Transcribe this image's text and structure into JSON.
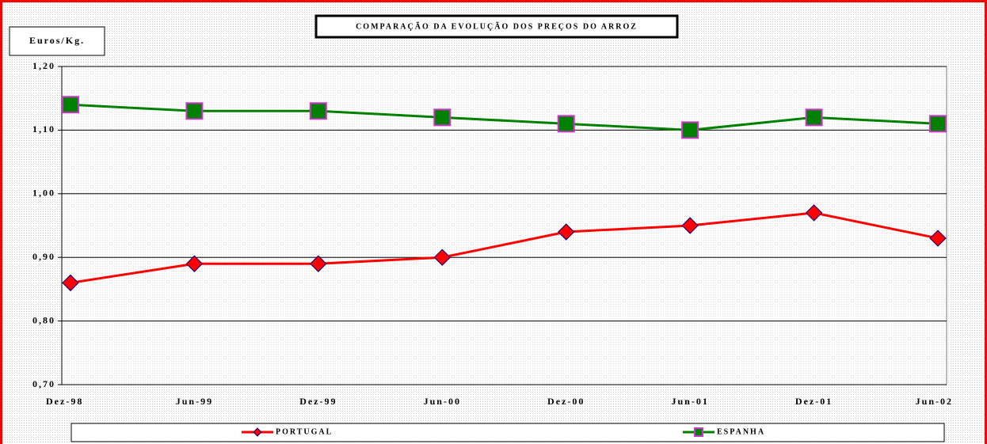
{
  "chart_data": {
    "type": "line",
    "title": "COMPARAÇÃO DA EVOLUÇÃO DOS PREÇOS DO ARROZ",
    "y_label": "Euros/Kg.",
    "categories": [
      "Dez-98",
      "Jun-99",
      "Dez-99",
      "Jun-00",
      "Dez-00",
      "Jun-01",
      "Dez-01",
      "Jun-02"
    ],
    "series": [
      {
        "name": "PORTUGAL",
        "color": "#ff0000",
        "marker": "diamond",
        "values": [
          0.86,
          0.89,
          0.89,
          0.9,
          0.94,
          0.95,
          0.97,
          0.93
        ]
      },
      {
        "name": "ESPANHA",
        "color": "#008000",
        "marker": "square",
        "values": [
          1.14,
          1.13,
          1.13,
          1.12,
          1.11,
          1.1,
          1.12,
          1.11
        ]
      }
    ],
    "ylim": [
      0.7,
      1.2
    ],
    "yticks": [
      {
        "value": 0.7,
        "label": "0,70"
      },
      {
        "value": 0.8,
        "label": "0,80"
      },
      {
        "value": 0.9,
        "label": "0,90"
      },
      {
        "value": 1.0,
        "label": "1,00"
      },
      {
        "value": 1.1,
        "label": "1,10"
      },
      {
        "value": 1.2,
        "label": "1,20"
      }
    ],
    "grid": true,
    "legend": "bottom"
  }
}
